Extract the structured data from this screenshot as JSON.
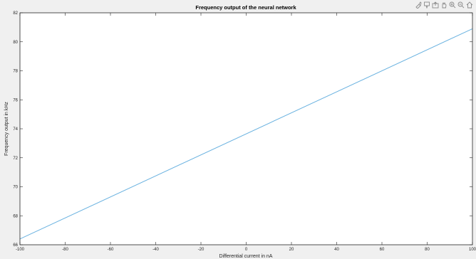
{
  "toolbar": {
    "icons": [
      "brush-icon",
      "data-tips-icon",
      "export-icon",
      "pan-icon",
      "zoom-in-icon",
      "zoom-out-icon",
      "home-icon"
    ]
  },
  "colors": {
    "figure_bg": "#f0f0f0",
    "axes_bg": "#ffffff",
    "axes_color": "#262626",
    "line_color": "#6ab2e0",
    "title_color": "#000000"
  },
  "chart_data": {
    "type": "line",
    "title": "Frequency output of the neural network",
    "xlabel": "Differential current in nA",
    "ylabel": "Frequency output in kHz",
    "xlim": [
      -100,
      100
    ],
    "ylim": [
      66,
      82
    ],
    "xticks": [
      -100,
      -80,
      -60,
      -40,
      -20,
      0,
      20,
      40,
      60,
      80,
      100
    ],
    "yticks": [
      66,
      68,
      70,
      72,
      74,
      76,
      78,
      80,
      82
    ],
    "grid": false,
    "series": [
      {
        "x": [
          -100,
          100
        ],
        "y": [
          66.4,
          80.9
        ]
      }
    ]
  }
}
